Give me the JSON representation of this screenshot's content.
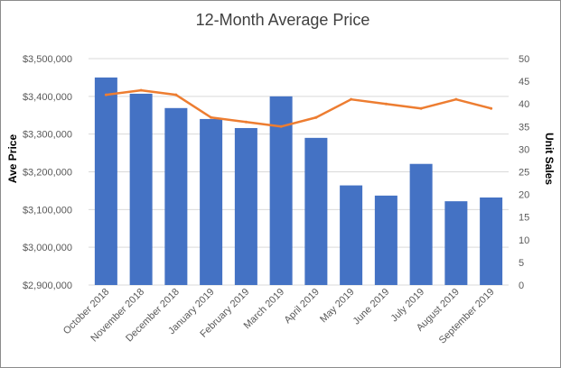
{
  "chart_data": {
    "type": "bar",
    "title": "12-Month Average Price",
    "ylabel": "Ave Price",
    "y2label": "Unit Sales",
    "categories": [
      "October 2018",
      "November 2018",
      "December 2018",
      "January 2019",
      "February 2019",
      "March 2019",
      "April 2019",
      "May 2019",
      "June 2019",
      "July 2019",
      "August 2019",
      "September 2019"
    ],
    "series": [
      {
        "type": "bar",
        "axis": "left",
        "values": [
          3450000,
          3407000,
          3369000,
          3340000,
          3316000,
          3400000,
          3290000,
          3164000,
          3137000,
          3221000,
          3122000,
          3132000
        ]
      },
      {
        "type": "line",
        "axis": "right",
        "values": [
          42,
          43,
          42,
          37,
          36,
          35,
          37,
          41,
          40,
          39,
          41,
          39
        ]
      }
    ],
    "ylim": [
      2900000,
      3500000
    ],
    "y2lim": [
      0,
      50
    ],
    "yticks": [
      "$2,900,000",
      "$3,000,000",
      "$3,100,000",
      "$3,200,000",
      "$3,300,000",
      "$3,400,000",
      "$3,500,000"
    ],
    "y2ticks": [
      "0",
      "5",
      "10",
      "15",
      "20",
      "25",
      "30",
      "35",
      "40",
      "45",
      "50"
    ],
    "grid": true,
    "legend": "none",
    "colors": {
      "bar": "#4472c4",
      "line": "#ed7d31",
      "grid": "#d9d9d9"
    }
  }
}
